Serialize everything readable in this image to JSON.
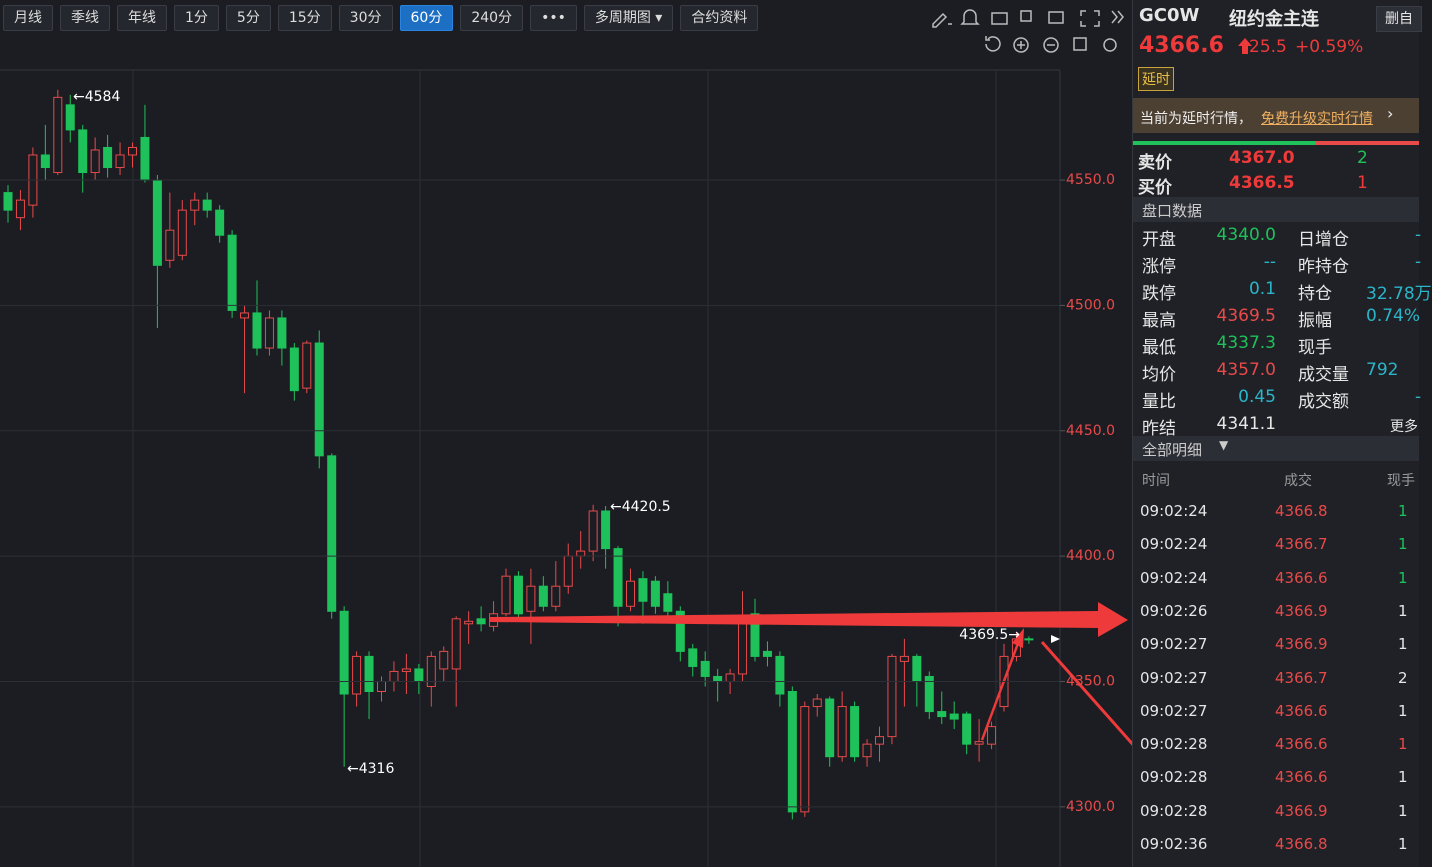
{
  "toolbar": {
    "buttons": [
      "月线",
      "季线",
      "年线",
      "1分",
      "5分",
      "15分",
      "30分",
      "60分",
      "240分",
      "•••",
      "多周期图",
      "合约资料"
    ],
    "active": 7
  },
  "chart_data": {
    "type": "candlestick",
    "open": [
      4545,
      4535,
      4540,
      4560,
      4553,
      4580,
      4570,
      4553,
      4563,
      4555,
      4560,
      4567,
      4550,
      4518,
      4520,
      4538,
      4542,
      4538,
      4528,
      4495,
      4497,
      4483,
      4495,
      4483,
      4467,
      4485,
      4440,
      4378,
      4345,
      4360,
      4346,
      4350,
      4354,
      4355,
      4348,
      4355,
      4355,
      4373,
      4375,
      4372,
      4377,
      4392,
      4378,
      4388,
      4380,
      4388,
      4400,
      4402,
      4418,
      4403,
      4380,
      4391,
      4390,
      4385,
      4378,
      4363,
      4358,
      4352,
      4350,
      4353,
      4377,
      4362,
      4360,
      4346,
      4298,
      4340,
      4343,
      4320,
      4340,
      4320,
      4325,
      4328,
      4358,
      4360,
      4352,
      4338,
      4337,
      4337,
      4325,
      4325,
      4340,
      4360,
      4367
    ],
    "high": [
      4548,
      4546,
      4563,
      4572,
      4586,
      4584,
      4572,
      4567,
      4568,
      4565,
      4565,
      4580,
      4552,
      4545,
      4542,
      4545,
      4545,
      4540,
      4530,
      4500,
      4510,
      4498,
      4498,
      4485,
      4486,
      4490,
      4441,
      4380,
      4362,
      4362,
      4352,
      4358,
      4361,
      4357,
      4362,
      4364,
      4376,
      4378,
      4380,
      4382,
      4395,
      4394,
      4395,
      4392,
      4398,
      4405,
      4410,
      4420.5,
      4420,
      4404,
      4395,
      4394,
      4392,
      4390,
      4380,
      4365,
      4362,
      4355,
      4355,
      4386,
      4383,
      4366,
      4362,
      4348,
      4342,
      4345,
      4344,
      4346,
      4342,
      4327,
      4332,
      4361,
      4367,
      4361,
      4354,
      4346,
      4342,
      4338,
      4335,
      4334,
      4365,
      4369.5,
      4368
    ],
    "low": [
      4533,
      4530,
      4535,
      4550,
      4552,
      4565,
      4545,
      4550,
      4551,
      4552,
      4555,
      4549,
      4491,
      4515,
      4518,
      4532,
      4535,
      4525,
      4495,
      4465,
      4480,
      4480,
      4476,
      4462,
      4465,
      4435,
      4375,
      4316,
      4340,
      4335,
      4342,
      4346,
      4345,
      4345,
      4340,
      4350,
      4340,
      4365,
      4370,
      4370,
      4376,
      4375,
      4365,
      4378,
      4378,
      4385,
      4395,
      4398,
      4395,
      4372,
      4378,
      4373,
      4377,
      4375,
      4358,
      4352,
      4348,
      4342,
      4345,
      4350,
      4358,
      4356,
      4340,
      4295,
      4296,
      4336,
      4316,
      4318,
      4318,
      4316,
      4318,
      4325,
      4340,
      4340,
      4335,
      4333,
      4331,
      4321,
      4318,
      4323,
      4338,
      4358,
      4365
    ],
    "close": [
      4538,
      4542,
      4560,
      4555,
      4583,
      4570,
      4553,
      4562,
      4555,
      4560,
      4563,
      4550,
      4516,
      4530,
      4538,
      4542,
      4538,
      4528,
      4498,
      4497,
      4483,
      4495,
      4483,
      4466,
      4485,
      4440,
      4378,
      4345,
      4360,
      4346,
      4350,
      4354,
      4355,
      4350,
      4360,
      4362,
      4375,
      4374,
      4373,
      4377,
      4392,
      4377,
      4388,
      4380,
      4388,
      4400,
      4402,
      4418,
      4403,
      4380,
      4390,
      4382,
      4380,
      4378,
      4362,
      4356,
      4352,
      4350,
      4353,
      4375,
      4360,
      4360,
      4345,
      4298,
      4340,
      4343,
      4320,
      4340,
      4320,
      4325,
      4328,
      4360,
      4360,
      4350,
      4338,
      4336,
      4335,
      4325,
      4326,
      4332,
      4360,
      4367,
      4366.6
    ],
    "up_color": "#e84a4a",
    "down_color": "#1fc25a",
    "ylim": [
      4276,
      4593.9
    ],
    "yticks": [
      {
        "value": 4300,
        "label": "4300.0"
      },
      {
        "value": 4350,
        "label": "4350.0"
      },
      {
        "value": 4400,
        "label": "4400.0"
      },
      {
        "value": 4450,
        "label": "4450.0"
      },
      {
        "value": 4500,
        "label": "4500.0"
      },
      {
        "value": 4550,
        "label": "4550.0"
      }
    ],
    "annotations": [
      "←4584",
      "←4316",
      "←4420.5",
      "4369.5→"
    ]
  },
  "quote": {
    "symbol": "GC0W",
    "name": "纽约金主连",
    "button": "删自",
    "price": "4366.6",
    "change": "25.5",
    "pct": "+0.59%",
    "badge": "延时",
    "notice": "当前为延时行情，",
    "link": "免费升级实时行情"
  },
  "orderbook": [
    [
      "卖价",
      "4367.0",
      "2"
    ],
    [
      "买价",
      "4366.5",
      "1"
    ]
  ],
  "panel": {
    "title": "盘口数据",
    "more": "更多",
    "rows": [
      [
        "开盘",
        "4340.0",
        "日增仓",
        "-"
      ],
      [
        "涨停",
        "--",
        "昨持仓",
        "-"
      ],
      [
        "跌停",
        "0.1",
        "持仓",
        "32.78万"
      ],
      [
        "最高",
        "4369.5",
        "振幅",
        "0.74%"
      ],
      [
        "最低",
        "4337.3",
        "现手",
        ""
      ],
      [
        "均价",
        "4357.0",
        "成交量",
        "792"
      ],
      [
        "量比",
        "0.45",
        "成交额",
        "-"
      ],
      [
        "昨结",
        "4341.1",
        "",
        ""
      ]
    ],
    "colors": [
      "#1fc25a",
      "#2bb5c9",
      "#2bb5c9",
      "#e84a4a",
      "#1fc25a",
      "#e84a4a",
      "#2bb5c9",
      "#e6e6e6"
    ]
  },
  "ticks": {
    "title": "全部明细",
    "header": [
      "时间",
      "成交",
      "现手"
    ],
    "rows": [
      [
        "09:02:24",
        "4366.8",
        "1",
        "#1fc25a"
      ],
      [
        "09:02:24",
        "4366.7",
        "1",
        "#1fc25a"
      ],
      [
        "09:02:24",
        "4366.6",
        "1",
        "#1fc25a"
      ],
      [
        "09:02:26",
        "4366.9",
        "1",
        "#e6e6e6"
      ],
      [
        "09:02:27",
        "4366.9",
        "1",
        "#e6e6e6"
      ],
      [
        "09:02:27",
        "4366.7",
        "2",
        "#e6e6e6"
      ],
      [
        "09:02:27",
        "4366.6",
        "1",
        "#e6e6e6"
      ],
      [
        "09:02:28",
        "4366.6",
        "1",
        "#e84a4a"
      ],
      [
        "09:02:28",
        "4366.6",
        "1",
        "#e6e6e6"
      ],
      [
        "09:02:28",
        "4366.9",
        "1",
        "#e6e6e6"
      ],
      [
        "09:02:36",
        "4366.8",
        "1",
        "#e6e6e6"
      ]
    ]
  }
}
